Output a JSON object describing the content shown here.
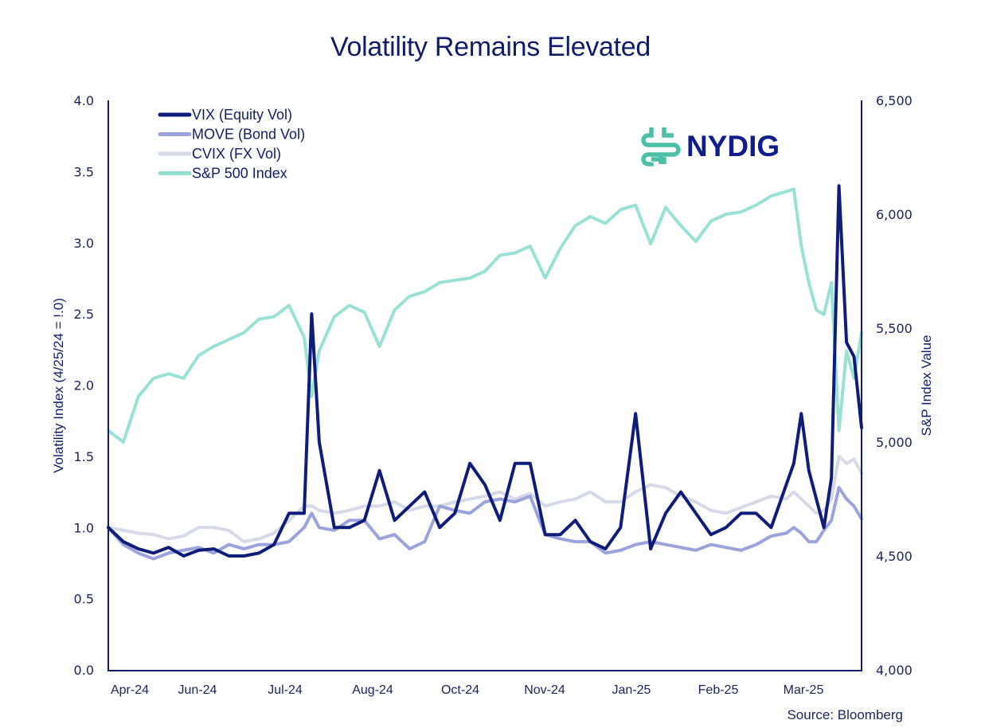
{
  "chart_data": {
    "type": "line",
    "title": "Volatility Remains Elevated",
    "ylabel": "Volatility Index (4/25/24 = !.0)",
    "y2label": "S&P Index Value",
    "ylim": [
      0.0,
      4.0
    ],
    "y2lim": [
      4000,
      6500
    ],
    "yticks": [
      "0.0",
      "0.5",
      "1.0",
      "1.5",
      "2.0",
      "2.5",
      "3.0",
      "3.5",
      "4.0"
    ],
    "y2ticks": [
      "4,000",
      "4,500",
      "5,000",
      "5,500",
      "6,000",
      "6,500"
    ],
    "xticks": [
      "Apr-24",
      "Jun-24",
      "Jul-24",
      "Aug-24",
      "Oct-24",
      "Nov-24",
      "Jan-25",
      "Feb-25",
      "Mar-25"
    ],
    "grid": false,
    "legend_position": "top-left",
    "source": "Source: Bloomberg",
    "logo": "NYDIG",
    "x_note": "x is fractional position along the time axis from 0 (Apr-24, 4/25/24) to 1 (end, early Apr-25)",
    "x": [
      0.0,
      0.02,
      0.04,
      0.06,
      0.08,
      0.1,
      0.12,
      0.14,
      0.16,
      0.18,
      0.2,
      0.22,
      0.24,
      0.26,
      0.27,
      0.28,
      0.3,
      0.32,
      0.34,
      0.36,
      0.38,
      0.4,
      0.42,
      0.44,
      0.46,
      0.48,
      0.5,
      0.52,
      0.54,
      0.56,
      0.58,
      0.6,
      0.62,
      0.64,
      0.66,
      0.68,
      0.7,
      0.72,
      0.74,
      0.76,
      0.78,
      0.8,
      0.82,
      0.84,
      0.86,
      0.88,
      0.9,
      0.91,
      0.92,
      0.93,
      0.94,
      0.95,
      0.96,
      0.97,
      0.98,
      0.99,
      1.0
    ],
    "series": [
      {
        "name": "VIX (Equity Vol)",
        "color": "#0f1d7a",
        "axis": "left",
        "values": [
          1.0,
          0.9,
          0.85,
          0.82,
          0.86,
          0.8,
          0.84,
          0.85,
          0.8,
          0.8,
          0.82,
          0.88,
          1.1,
          1.1,
          2.5,
          1.6,
          1.0,
          1.0,
          1.05,
          1.4,
          1.05,
          1.15,
          1.25,
          1.0,
          1.1,
          1.45,
          1.3,
          1.05,
          1.45,
          1.45,
          0.95,
          0.95,
          1.05,
          0.9,
          0.85,
          1.0,
          1.8,
          0.85,
          1.1,
          1.25,
          1.1,
          0.95,
          1.0,
          1.1,
          1.1,
          1.0,
          1.3,
          1.45,
          1.8,
          1.4,
          1.2,
          1.0,
          1.35,
          3.4,
          2.3,
          2.2,
          1.7
        ]
      },
      {
        "name": "MOVE (Bond Vol)",
        "color": "#9aa3dc",
        "axis": "left",
        "values": [
          1.0,
          0.88,
          0.82,
          0.78,
          0.82,
          0.84,
          0.86,
          0.82,
          0.88,
          0.85,
          0.88,
          0.88,
          0.9,
          1.0,
          1.1,
          1.0,
          0.98,
          1.05,
          1.05,
          0.92,
          0.95,
          0.85,
          0.9,
          1.15,
          1.12,
          1.1,
          1.18,
          1.2,
          1.18,
          1.22,
          0.95,
          0.92,
          0.9,
          0.9,
          0.82,
          0.84,
          0.88,
          0.9,
          0.88,
          0.86,
          0.84,
          0.88,
          0.86,
          0.84,
          0.88,
          0.94,
          0.96,
          1.0,
          0.96,
          0.9,
          0.9,
          0.98,
          1.05,
          1.28,
          1.2,
          1.15,
          1.06
        ]
      },
      {
        "name": "CVIX (FX Vol)",
        "color": "#d6d9e8",
        "axis": "left",
        "values": [
          1.0,
          0.98,
          0.96,
          0.95,
          0.92,
          0.94,
          1.0,
          1.0,
          0.98,
          0.9,
          0.92,
          0.96,
          1.05,
          1.15,
          1.15,
          1.12,
          1.1,
          1.12,
          1.15,
          1.15,
          1.18,
          1.12,
          1.15,
          1.15,
          1.18,
          1.2,
          1.22,
          1.25,
          1.2,
          1.24,
          1.15,
          1.18,
          1.2,
          1.25,
          1.18,
          1.18,
          1.25,
          1.3,
          1.28,
          1.22,
          1.18,
          1.12,
          1.1,
          1.14,
          1.18,
          1.22,
          1.2,
          1.25,
          1.2,
          1.15,
          1.1,
          1.12,
          1.2,
          1.5,
          1.45,
          1.48,
          1.38
        ]
      },
      {
        "name": "S&P 500 Index",
        "color": "#93dfd2",
        "axis": "right",
        "values": [
          5050,
          5000,
          5200,
          5280,
          5300,
          5280,
          5380,
          5420,
          5450,
          5480,
          5540,
          5550,
          5600,
          5460,
          5200,
          5400,
          5550,
          5600,
          5570,
          5420,
          5580,
          5640,
          5660,
          5700,
          5710,
          5720,
          5750,
          5820,
          5830,
          5860,
          5720,
          5850,
          5950,
          5990,
          5960,
          6020,
          6040,
          5870,
          6030,
          5950,
          5880,
          5970,
          6000,
          6010,
          6040,
          6080,
          6100,
          6110,
          5860,
          5700,
          5580,
          5560,
          5700,
          5050,
          5400,
          5280,
          5480
        ]
      }
    ]
  },
  "legend": [
    {
      "label": "VIX (Equity Vol)",
      "color": "#0f1d7a"
    },
    {
      "label": "MOVE (Bond Vol)",
      "color": "#9aa3dc"
    },
    {
      "label": "CVIX (FX Vol)",
      "color": "#d6d9e8"
    },
    {
      "label": "S&P 500 Index",
      "color": "#93dfd2"
    }
  ],
  "colors": {
    "axis": "#0f1d6b",
    "logo_mark": "#4cbfa6",
    "logo_text": "#0f1d8a"
  }
}
